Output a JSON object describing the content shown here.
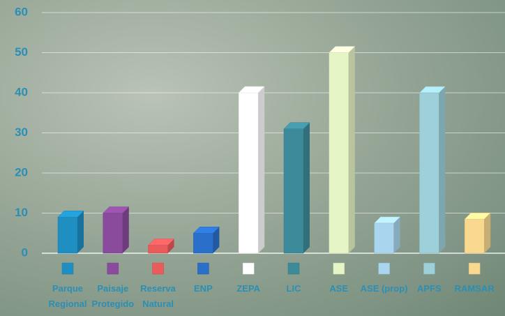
{
  "chart_data": {
    "type": "bar3d",
    "categories": [
      "Parque Regional",
      "Paisaje Protegido",
      "Reserva Natural",
      "ENP",
      "ZEPA",
      "LIC",
      "ASE",
      "ASE (prop)",
      "APFS",
      "RAMSAR"
    ],
    "values": [
      9,
      10,
      2,
      5,
      40,
      31,
      50,
      7.5,
      40,
      8.5
    ],
    "colors": [
      "#1f8fc2",
      "#8a4b9c",
      "#ea5b5b",
      "#2a6fca",
      "#ffffff",
      "#3d8b9a",
      "#e6f5c6",
      "#a9d5ef",
      "#9dd0d9",
      "#f9d98f"
    ],
    "ylim": [
      0,
      60
    ],
    "yticks": [
      0,
      10,
      20,
      30,
      40,
      50,
      60
    ],
    "grid": true
  }
}
